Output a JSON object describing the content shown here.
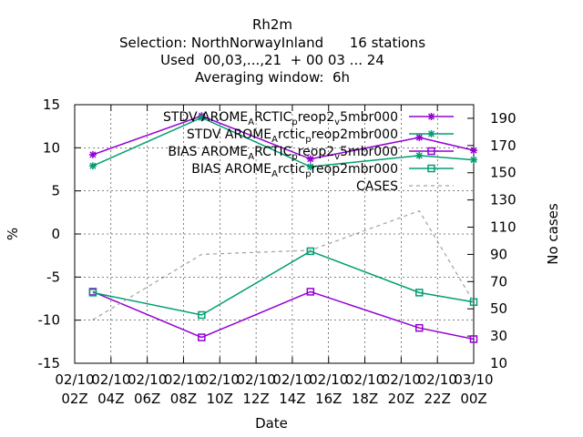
{
  "chart_data": {
    "type": "line",
    "title_lines": [
      "Rh2m",
      "Selection: NorthNorwayInland      16 stations",
      "Used  00,03,...,21  + 00 03 ... 24",
      "Averaging window:  6h"
    ],
    "xlabel": "Date",
    "ylabel": "%",
    "y2label": "No cases",
    "x_ticks": [
      [
        "02/10",
        "02Z"
      ],
      [
        "02/10",
        "04Z"
      ],
      [
        "02/10",
        "06Z"
      ],
      [
        "02/10",
        "08Z"
      ],
      [
        "02/10",
        "10Z"
      ],
      [
        "02/10",
        "12Z"
      ],
      [
        "02/10",
        "14Z"
      ],
      [
        "02/10",
        "16Z"
      ],
      [
        "02/10",
        "18Z"
      ],
      [
        "02/10",
        "20Z"
      ],
      [
        "02/10",
        "22Z"
      ],
      [
        "03/10",
        "00Z"
      ]
    ],
    "x_range_hours": [
      2,
      24
    ],
    "ylim": [
      -15,
      15
    ],
    "y_ticks": [
      -15,
      -10,
      -5,
      0,
      5,
      10,
      15
    ],
    "y2lim": [
      10,
      200
    ],
    "y2_ticks": [
      10,
      30,
      50,
      70,
      90,
      110,
      130,
      150,
      170,
      190
    ],
    "legend_position": "top-right",
    "series": [
      {
        "name": "STDV AROME_ARCTIC_preop2_v_5mbr000",
        "legend_main": [
          "STDV AROME",
          "RCTIC",
          "reop2",
          "5mbr000"
        ],
        "legend_sub": [
          "A",
          "p",
          "v"
        ],
        "color": "#9400d3",
        "marker": "star",
        "axis": "y",
        "x": [
          3,
          9,
          15,
          21,
          24
        ],
        "y": [
          9.2,
          13.7,
          8.7,
          11.2,
          9.7
        ]
      },
      {
        "name": "STDV AROME_Arctic_preop2mbr000",
        "legend_main": [
          "STDV AROME",
          "rctic",
          "reop2mbr000"
        ],
        "legend_sub": [
          "A",
          "p"
        ],
        "color": "#009e73",
        "marker": "star",
        "axis": "y",
        "x": [
          3,
          9,
          15,
          21,
          24
        ],
        "y": [
          7.9,
          13.5,
          7.8,
          9.1,
          8.6
        ]
      },
      {
        "name": "BIAS AROME_ARCTIC_preop2_v_5mbr000",
        "legend_main": [
          "BIAS AROME",
          "RCTIC",
          "reop2",
          "5mbr000"
        ],
        "legend_sub": [
          "A",
          "p",
          "v"
        ],
        "color": "#9400d3",
        "marker": "square",
        "axis": "y",
        "x": [
          3,
          9,
          15,
          21,
          24
        ],
        "y": [
          -6.7,
          -12.0,
          -6.7,
          -10.9,
          -12.2
        ]
      },
      {
        "name": "BIAS AROME_Arctic_preop2mbr000",
        "legend_main": [
          "BIAS AROME",
          "rctic",
          "reop2mbr000"
        ],
        "legend_sub": [
          "A",
          "p"
        ],
        "color": "#009e73",
        "marker": "square",
        "axis": "y",
        "x": [
          3,
          9,
          15,
          21,
          24
        ],
        "y": [
          -6.8,
          -9.4,
          -2.0,
          -6.8,
          -7.9
        ]
      },
      {
        "name": "CASES",
        "legend_main": [
          "CASES"
        ],
        "legend_sub": [],
        "color": "#a0a0a0",
        "marker": "none",
        "dashed": true,
        "axis": "y2",
        "x": [
          3,
          9,
          15,
          21,
          24
        ],
        "y": [
          42,
          90,
          93,
          122,
          55
        ]
      }
    ]
  }
}
